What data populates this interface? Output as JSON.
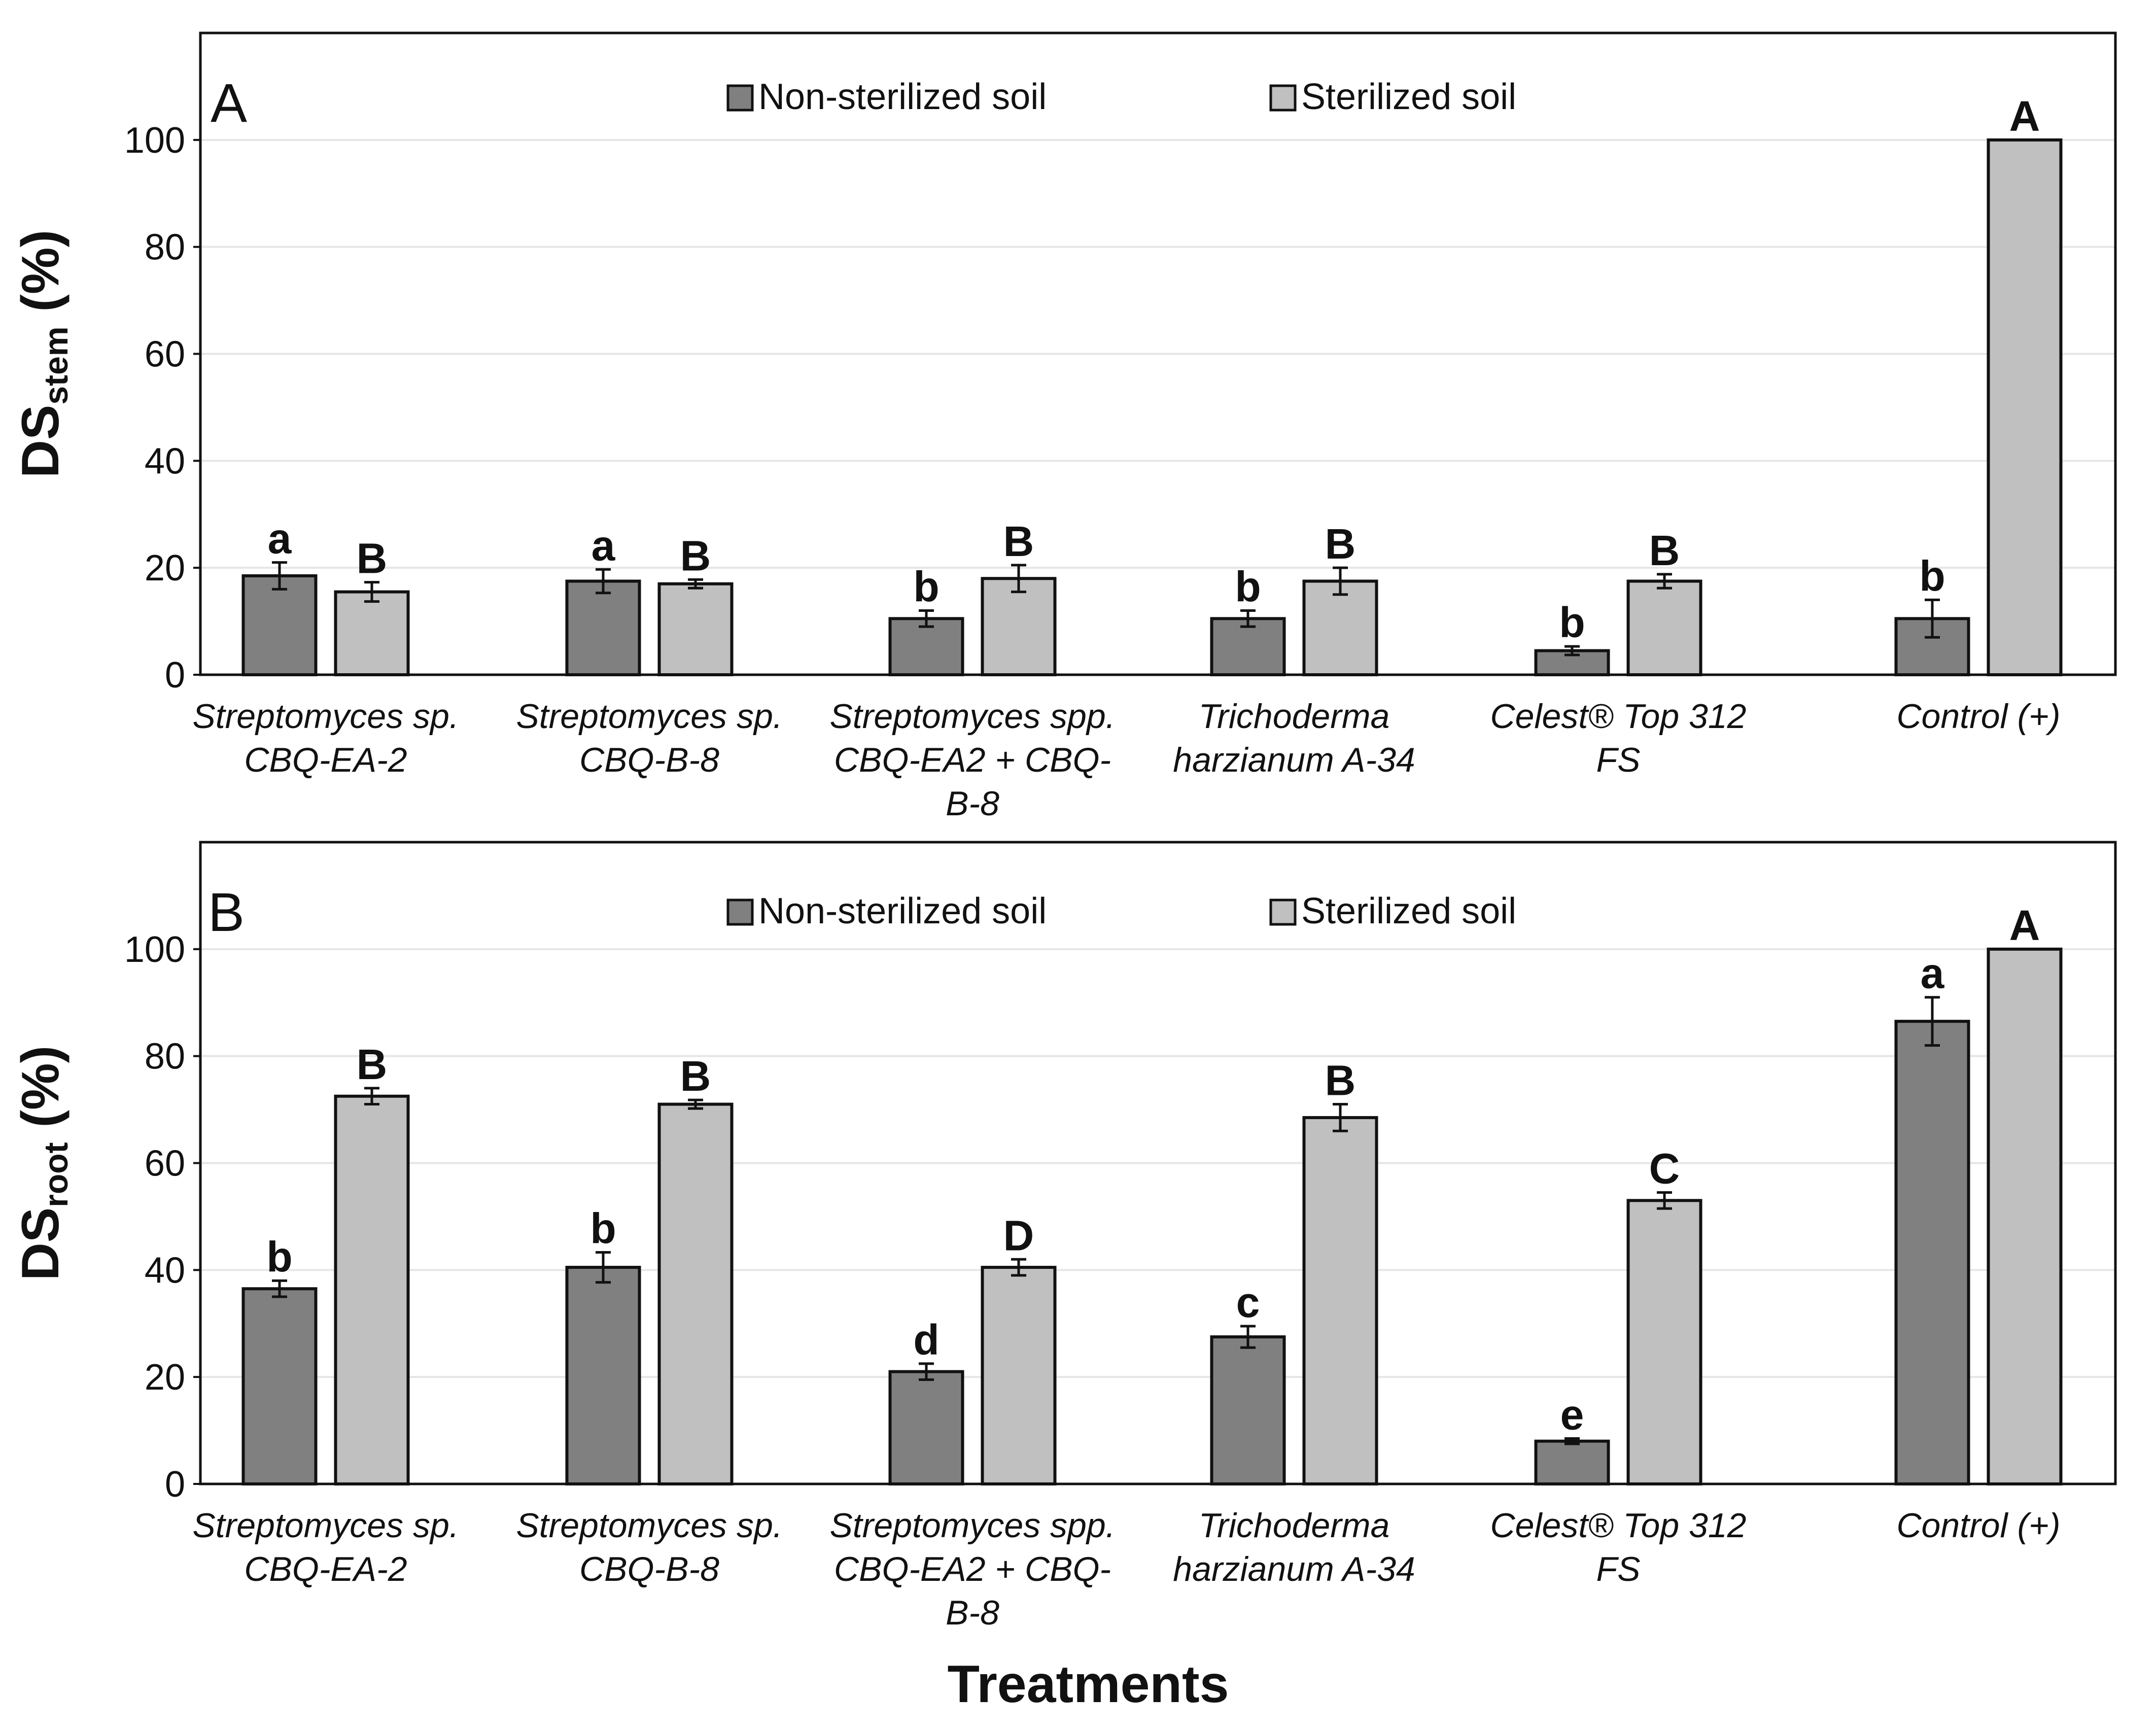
{
  "chart_data": [
    {
      "type": "bar",
      "panel": "A",
      "ylabel_main": "DS",
      "ylabel_sub": "stem",
      "ylabel_unit": " (%)",
      "ylim": [
        0,
        120
      ],
      "yticks": [
        0,
        20,
        40,
        60,
        80,
        100
      ],
      "grid": true,
      "legend_position": "top-center",
      "categories": [
        [
          "Streptomyces sp.",
          "CBQ-EA-2"
        ],
        [
          "Streptomyces sp.",
          "CBQ-B-8"
        ],
        [
          "Streptomyces spp.",
          "CBQ-EA2 + CBQ-",
          "B-8"
        ],
        [
          "Trichoderma",
          "harzianum A-34"
        ],
        [
          "Celest® Top 312",
          "FS"
        ],
        [
          "Control (+)"
        ]
      ],
      "series": [
        {
          "name": "Non-sterilized soil",
          "color": "#808080",
          "values": [
            18.5,
            17.5,
            10.5,
            10.5,
            4.5,
            10.5
          ],
          "errors": [
            2.5,
            2.2,
            1.5,
            1.5,
            0.8,
            3.5
          ],
          "letters": [
            "a",
            "a",
            "b",
            "b",
            "b",
            "b"
          ]
        },
        {
          "name": "Sterilized soil",
          "color": "#c0c0c0",
          "values": [
            15.5,
            17.0,
            18.0,
            17.5,
            17.5,
            100
          ],
          "errors": [
            1.8,
            0.8,
            2.5,
            2.5,
            1.3,
            0
          ],
          "letters": [
            "B",
            "B",
            "B",
            "B",
            "B",
            "A"
          ]
        }
      ]
    },
    {
      "type": "bar",
      "panel": "B",
      "ylabel_main": "DS",
      "ylabel_sub": "root",
      "ylabel_unit": " (%)",
      "ylim": [
        0,
        120
      ],
      "yticks": [
        0,
        20,
        40,
        60,
        80,
        100
      ],
      "grid": true,
      "legend_position": "top-center",
      "xlabel": "Treatments",
      "categories": [
        [
          "Streptomyces sp.",
          "CBQ-EA-2"
        ],
        [
          "Streptomyces sp.",
          "CBQ-B-8"
        ],
        [
          "Streptomyces spp.",
          "CBQ-EA2 + CBQ-",
          "B-8"
        ],
        [
          "Trichoderma",
          "harzianum A-34"
        ],
        [
          "Celest® Top 312",
          "FS"
        ],
        [
          "Control (+)"
        ]
      ],
      "series": [
        {
          "name": "Non-sterilized soil",
          "color": "#808080",
          "values": [
            36.5,
            40.5,
            21.0,
            27.5,
            8.0,
            86.5
          ],
          "errors": [
            1.5,
            2.8,
            1.5,
            2.0,
            0.5,
            4.5
          ],
          "letters": [
            "b",
            "b",
            "d",
            "c",
            "e",
            "a"
          ]
        },
        {
          "name": "Sterilized soil",
          "color": "#c0c0c0",
          "values": [
            72.5,
            71.0,
            40.5,
            68.5,
            53.0,
            100
          ],
          "errors": [
            1.5,
            0.8,
            1.5,
            2.5,
            1.5,
            0
          ],
          "letters": [
            "B",
            "B",
            "D",
            "B",
            "C",
            "A"
          ]
        }
      ]
    }
  ]
}
